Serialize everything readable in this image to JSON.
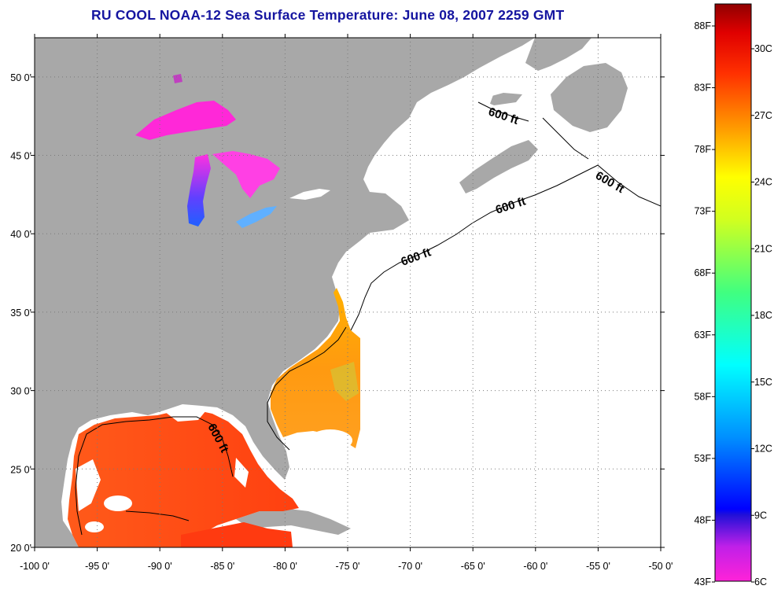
{
  "title": "RU COOL  NOAA-12  Sea Surface Temperature:  June 08, 2007 2259 GMT",
  "map": {
    "lon_range": [
      -100,
      -50
    ],
    "lat_range": [
      20,
      52.5
    ],
    "lon_ticks": [
      "-100 0'",
      "-95 0'",
      "-90 0'",
      "-85 0'",
      "-80 0'",
      "-75 0'",
      "-70 0'",
      "-65 0'",
      "-60 0'",
      "-55 0'",
      "-50 0'"
    ],
    "lat_ticks": [
      "20 0'",
      "25 0'",
      "30 0'",
      "35 0'",
      "40 0'",
      "45 0'",
      "50 0'"
    ],
    "contour_labels": [
      "600 ft",
      "600 ft",
      "600 ft",
      "600 ft",
      "600 ft"
    ],
    "land_color": "#a8a8a8",
    "cloud_color": "#ffffff",
    "grid": "dotted"
  },
  "colorbar": {
    "fahrenheit": [
      "88F",
      "83F",
      "78F",
      "73F",
      "68F",
      "63F",
      "58F",
      "53F",
      "48F",
      "43F"
    ],
    "celsius": [
      "30C",
      "27C",
      "24C",
      "21C",
      "18C",
      "15C",
      "12C",
      "9C",
      "6C"
    ]
  }
}
